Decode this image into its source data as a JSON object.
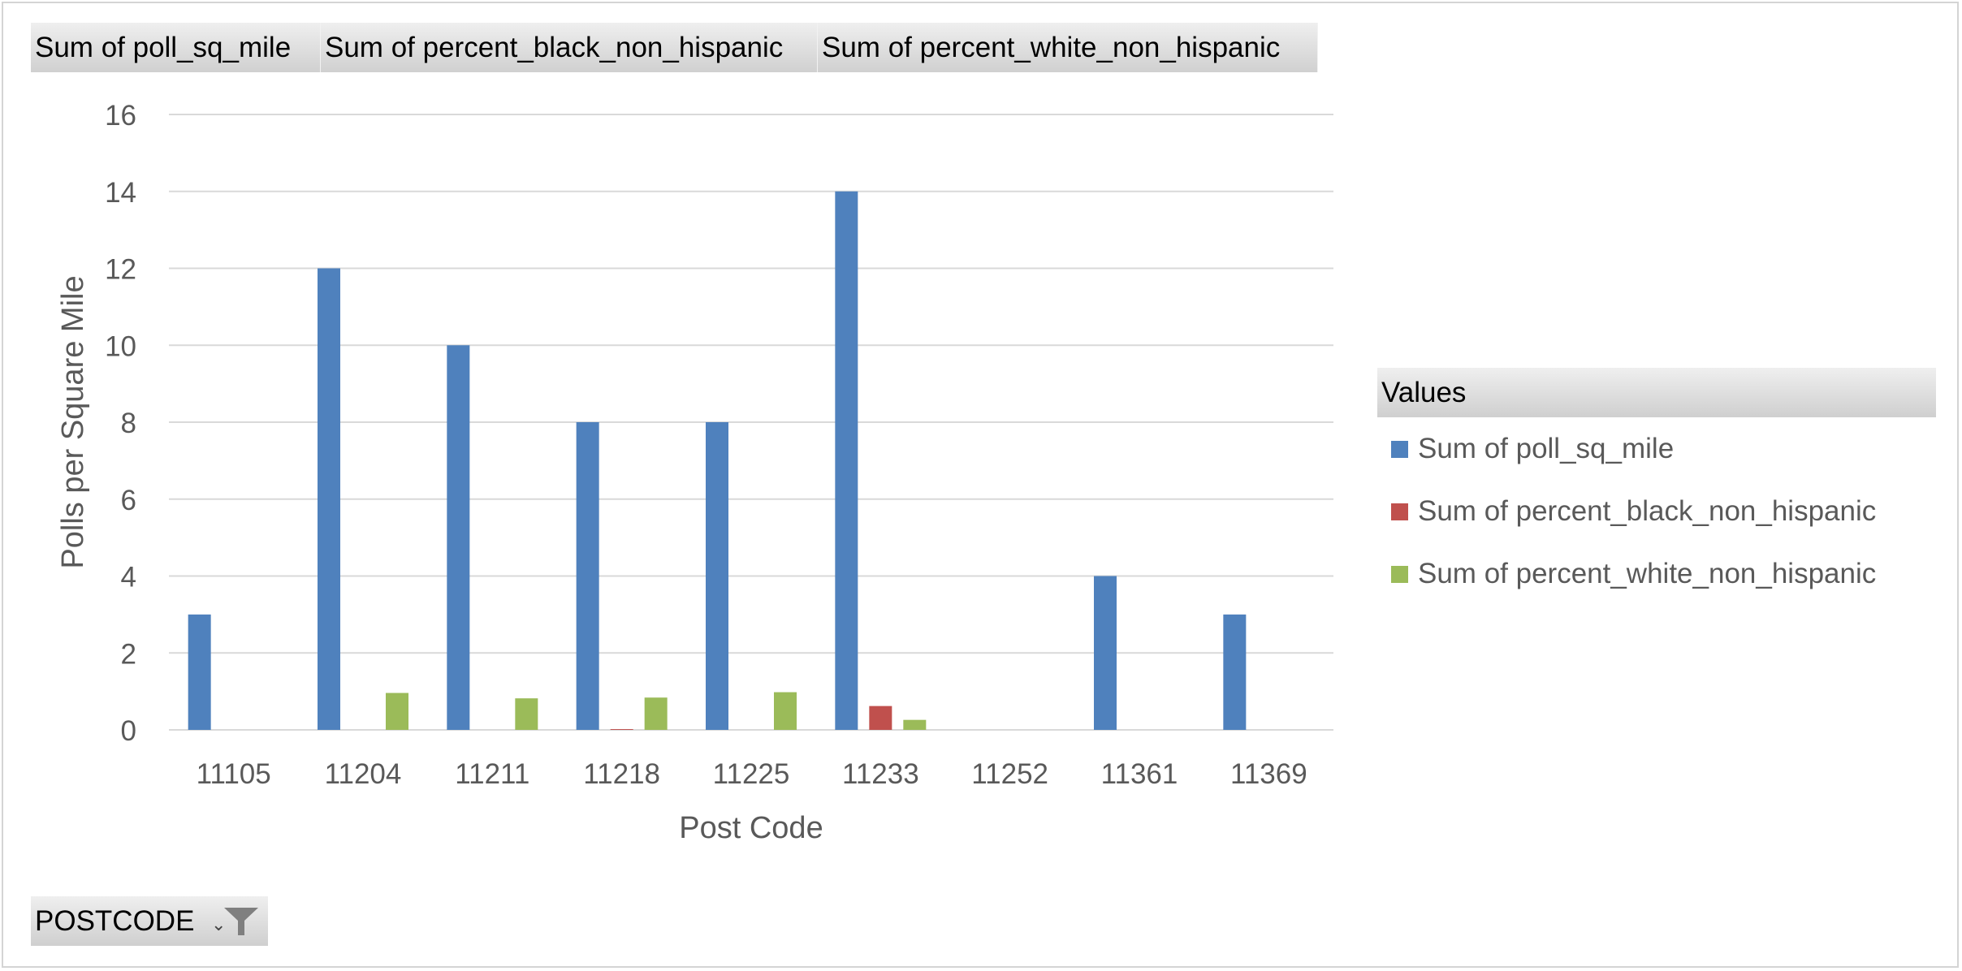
{
  "field_buttons": [
    "Sum of poll_sq_mile",
    "Sum of percent_black_non_hispanic",
    "Sum of percent_white_non_hispanic"
  ],
  "filter": {
    "label": "POSTCODE",
    "dropdown_glyph": "⌄",
    "icon": "funnel-filter-icon"
  },
  "legend": {
    "header": "Values",
    "items": [
      {
        "label": "Sum of poll_sq_mile",
        "color": "#4f81bd"
      },
      {
        "label": "Sum of percent_black_non_hispanic",
        "color": "#c0504d"
      },
      {
        "label": "Sum of percent_white_non_hispanic",
        "color": "#9bbb59"
      }
    ]
  },
  "chart_data": {
    "type": "bar",
    "title": "",
    "xlabel": "Post Code",
    "ylabel": "Polls per Square Mile",
    "ylim": [
      0,
      16
    ],
    "yticks": [
      0,
      2,
      4,
      6,
      8,
      10,
      12,
      14,
      16
    ],
    "grid": true,
    "legend_position": "right",
    "categories": [
      "11105",
      "11204",
      "11211",
      "11218",
      "11225",
      "11233",
      "11252",
      "11361",
      "11369"
    ],
    "series": [
      {
        "name": "Sum of poll_sq_mile",
        "color": "#4f81bd",
        "values": [
          3,
          12,
          10,
          8,
          8,
          14,
          0,
          4,
          3
        ]
      },
      {
        "name": "Sum of percent_black_non_hispanic",
        "color": "#c0504d",
        "values": [
          0,
          0,
          0,
          0.02,
          0,
          0.62,
          0,
          0,
          0
        ]
      },
      {
        "name": "Sum of percent_white_non_hispanic",
        "color": "#9bbb59",
        "values": [
          0,
          0.96,
          0.82,
          0.84,
          0.98,
          0.26,
          0,
          0,
          0
        ]
      }
    ]
  }
}
